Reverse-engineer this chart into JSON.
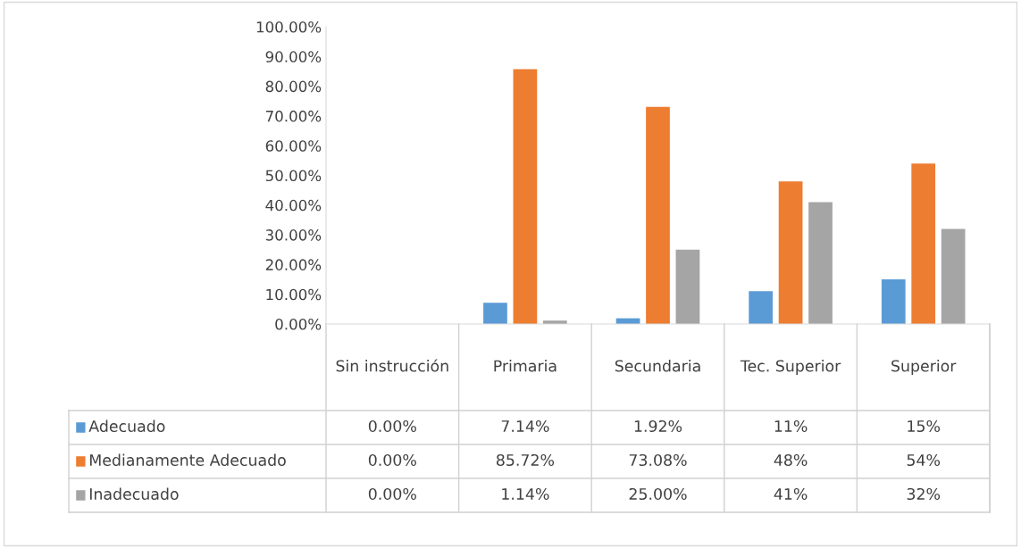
{
  "chart_data": {
    "type": "bar",
    "categories": [
      "Sin instrucción",
      "Primaria",
      "Secundaria",
      "Tec. Superior",
      "Superior"
    ],
    "series": [
      {
        "name": "Adecuado",
        "color": "#5b9bd5",
        "values": [
          0,
          7.14,
          1.92,
          11,
          15
        ],
        "value_labels": [
          "0.00%",
          "7.14%",
          "1.92%",
          "11%",
          "15%"
        ]
      },
      {
        "name": "Medianamente Adecuado",
        "color": "#ed7d31",
        "values": [
          0,
          85.72,
          73.08,
          48,
          54
        ],
        "value_labels": [
          "0.00%",
          "85.72%",
          "73.08%",
          "48%",
          "54%"
        ]
      },
      {
        "name": "Inadecuado",
        "color": "#a5a5a5",
        "values": [
          0,
          1.14,
          25.0,
          41,
          32
        ],
        "value_labels": [
          "0.00%",
          "1.14%",
          "25.00%",
          "41%",
          "32%"
        ]
      }
    ],
    "ylim": [
      0,
      100
    ],
    "yticks": [
      {
        "value": 0,
        "label": "0.00%"
      },
      {
        "value": 10,
        "label": "10.00%"
      },
      {
        "value": 20,
        "label": "20.00%"
      },
      {
        "value": 30,
        "label": "30.00%"
      },
      {
        "value": 40,
        "label": "40.00%"
      },
      {
        "value": 50,
        "label": "50.00%"
      },
      {
        "value": 60,
        "label": "60.00%"
      },
      {
        "value": 70,
        "label": "70.00%"
      },
      {
        "value": 80,
        "label": "80.00%"
      },
      {
        "value": 90,
        "label": "90.00%"
      },
      {
        "value": 100,
        "label": "100.00%"
      }
    ],
    "grid": false,
    "legend": "bottom left"
  }
}
